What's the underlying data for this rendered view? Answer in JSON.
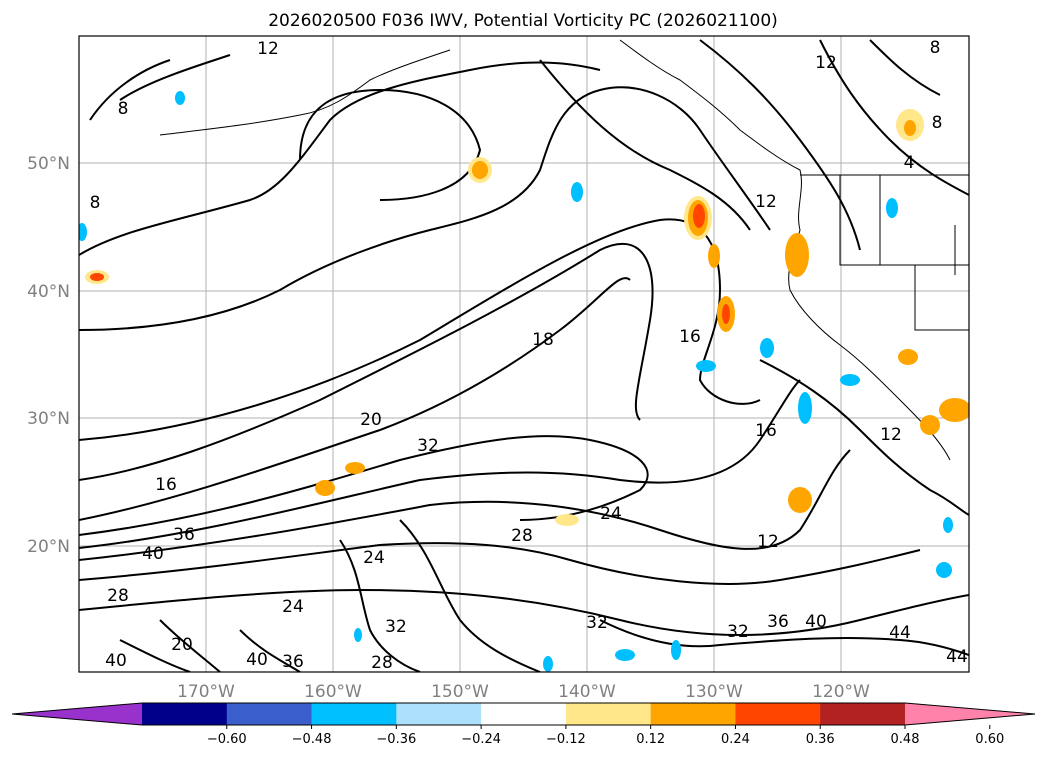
{
  "map": {
    "title": "2026020500 F036 IWV, Potential Vorticity PC (2026021100)",
    "lat_labels": [
      "50°N",
      "40°N",
      "30°N",
      "20°N"
    ],
    "lon_labels": [
      "170°W",
      "160°W",
      "150°W",
      "140°W",
      "130°W",
      "120°W"
    ],
    "contour_labels": [
      "12",
      "8",
      "8",
      "12",
      "8",
      "8",
      "4",
      "12",
      "16",
      "18",
      "20",
      "32",
      "16",
      "36",
      "40",
      "28",
      "24",
      "28",
      "24",
      "12",
      "16",
      "12",
      "32",
      "32",
      "36",
      "40",
      "44",
      "44",
      "24",
      "20",
      "36",
      "32",
      "40",
      "40",
      "28"
    ]
  },
  "colorbar": {
    "ticks": [
      "−0.60",
      "−0.48",
      "−0.36",
      "−0.24",
      "−0.12",
      "0.12",
      "0.24",
      "0.36",
      "0.48",
      "0.60"
    ],
    "colors": [
      "#9932CC",
      "#00008B",
      "#3A5FCD",
      "#00BFFF",
      "#ADE1FB",
      "#FFFFFF",
      "#FFE78A",
      "#FFA500",
      "#FF4500",
      "#B22222",
      "#FF82AB"
    ]
  }
}
